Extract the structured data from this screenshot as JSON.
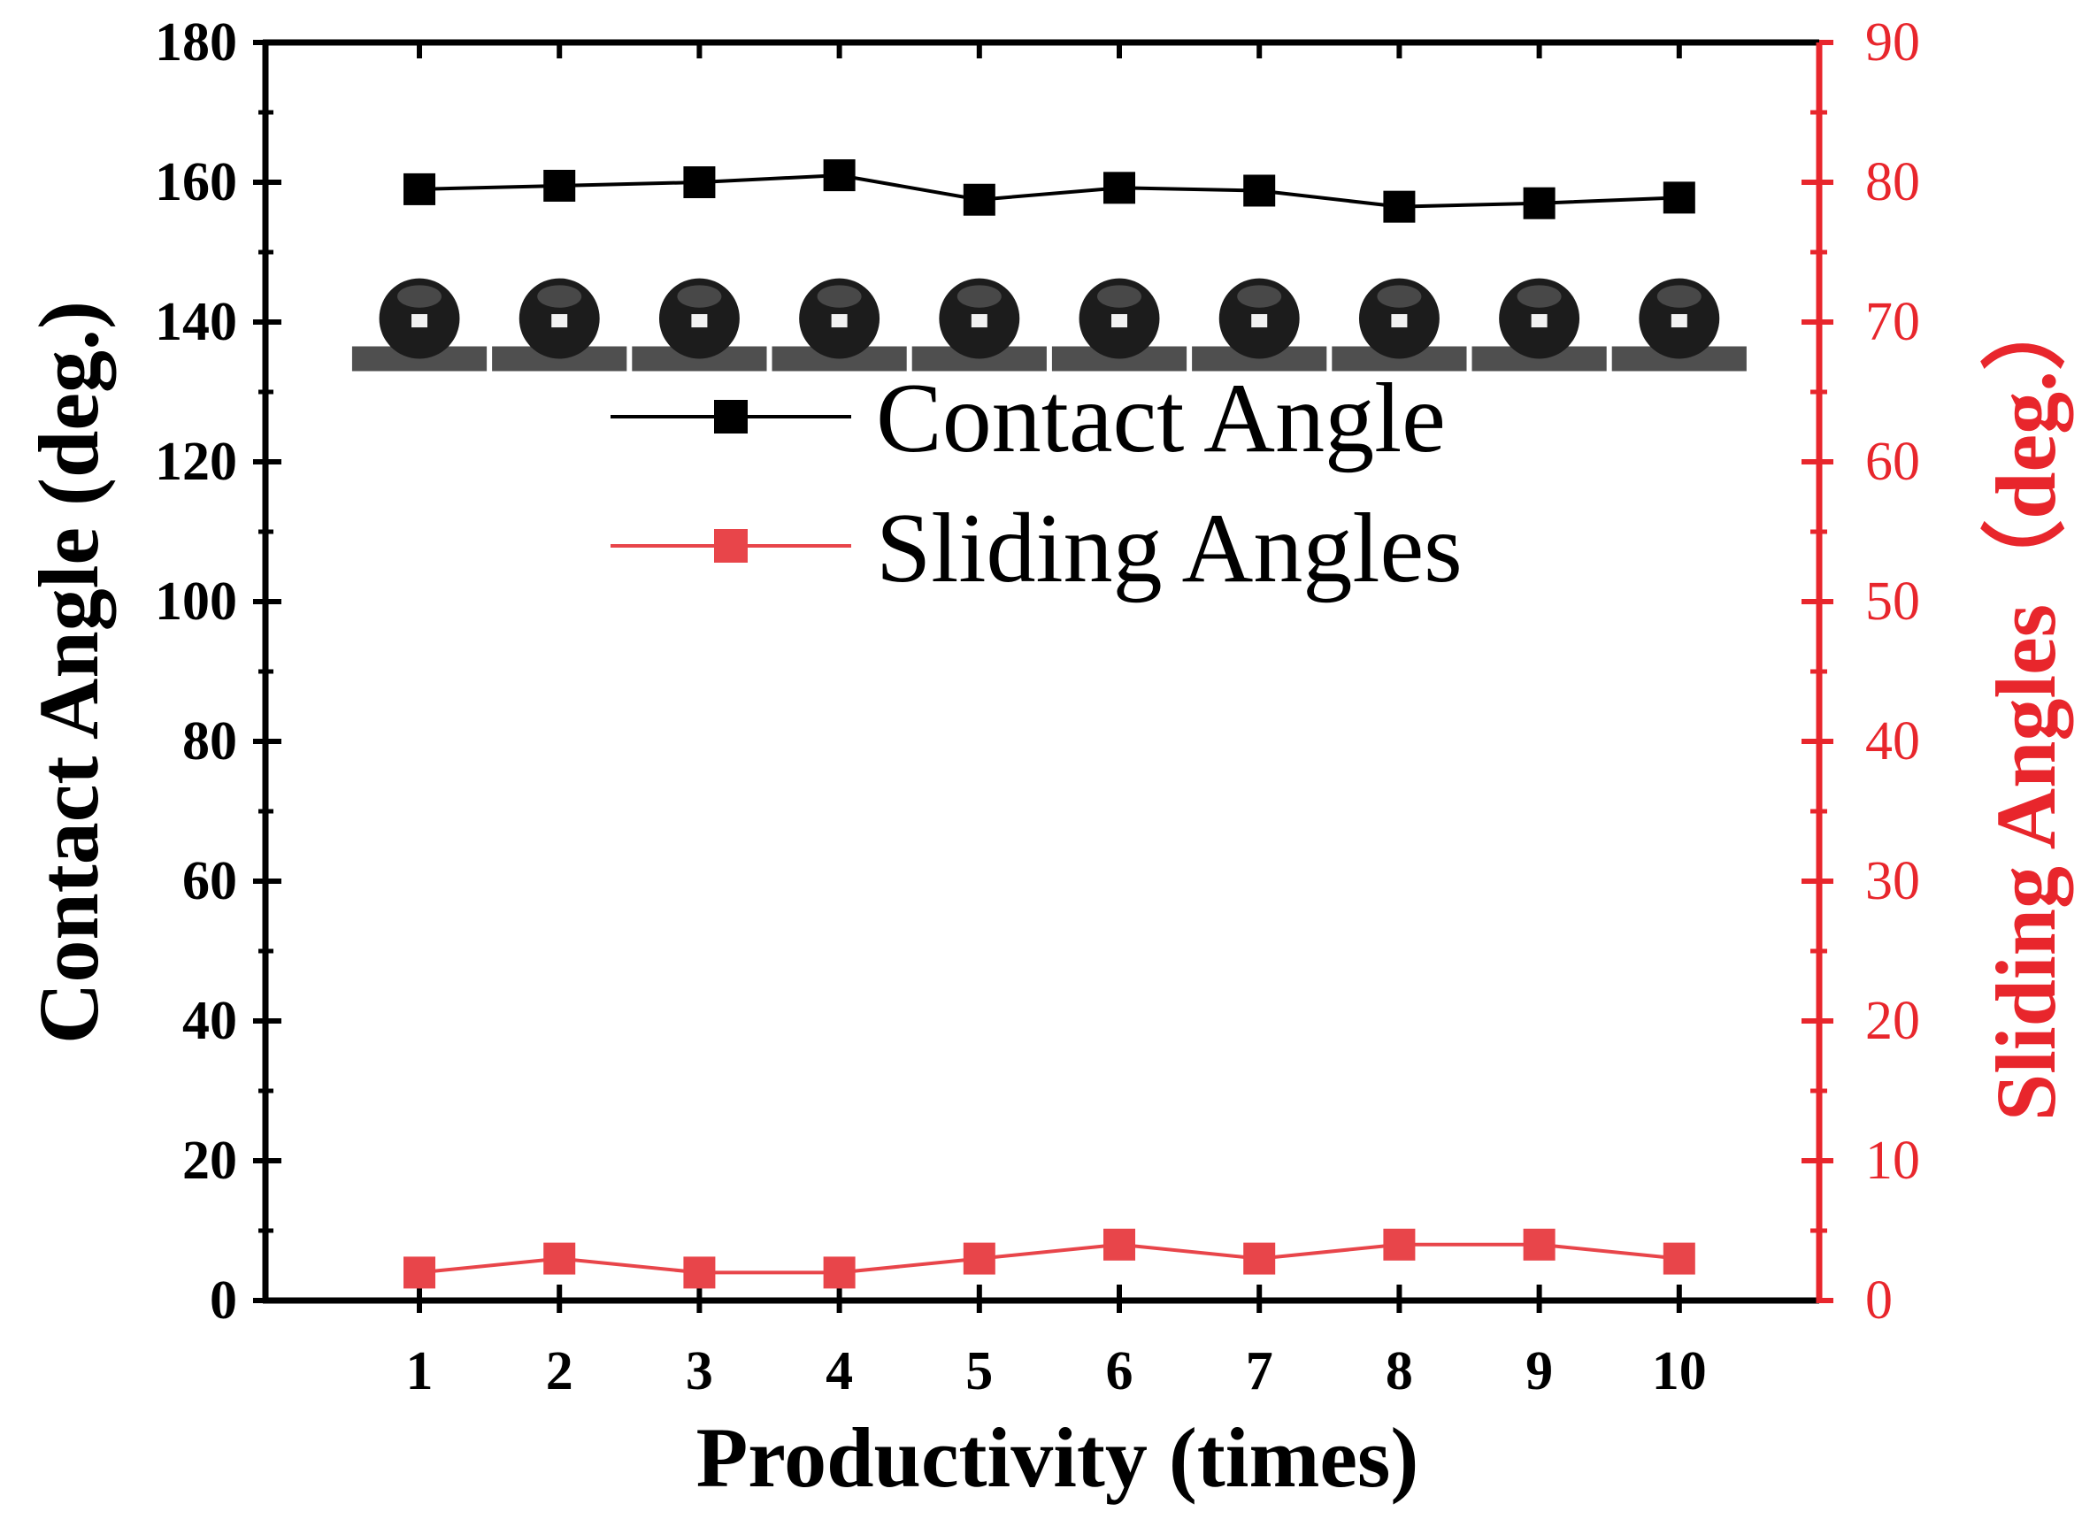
{
  "chart_data": {
    "type": "line",
    "dual_axis": true,
    "x": [
      1,
      2,
      3,
      4,
      5,
      6,
      7,
      8,
      9,
      10
    ],
    "xlabel": "Productivity (times)",
    "xticks": [
      "1",
      "2",
      "3",
      "4",
      "5",
      "6",
      "7",
      "8",
      "9",
      "10"
    ],
    "xlim": [
      -0.1,
      11
    ],
    "ylabel_left": "Contact Angle (deg.)",
    "ylim_left": [
      0,
      180
    ],
    "yticks_left": [
      "0",
      "20",
      "40",
      "60",
      "80",
      "100",
      "120",
      "140",
      "160",
      "180"
    ],
    "ylabel_right": "Sliding Angles（deg.）",
    "ylim_right": [
      0,
      90
    ],
    "yticks_right": [
      "0",
      "10",
      "20",
      "30",
      "40",
      "50",
      "60",
      "70",
      "80",
      "90"
    ],
    "series": [
      {
        "name": "Contact Angle",
        "axis": "left",
        "color": "#000000",
        "marker": "square",
        "values": [
          159,
          159.5,
          160,
          161,
          157.5,
          159.2,
          158.8,
          156.5,
          157,
          157.8
        ]
      },
      {
        "name": "Sliding Angles",
        "axis": "right",
        "color": "#e8454a",
        "marker": "square",
        "values": [
          2,
          3,
          2,
          2,
          3,
          4,
          3,
          4,
          4,
          3
        ]
      }
    ],
    "legend": "upper-center",
    "grid": false,
    "inset": "water droplet photographs above each Contact Angle point"
  }
}
